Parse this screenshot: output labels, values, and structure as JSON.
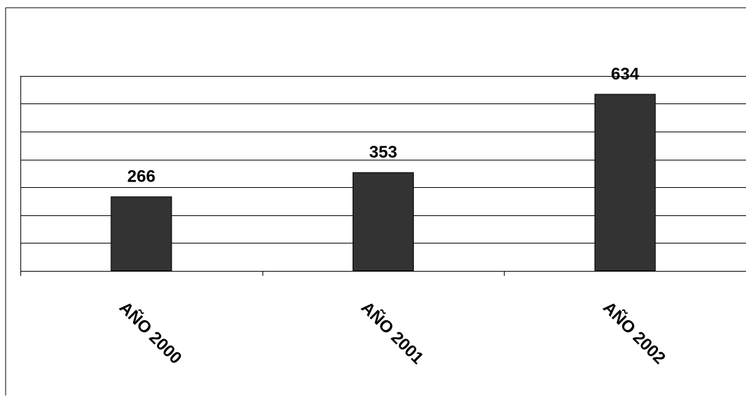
{
  "chart_data": {
    "type": "bar",
    "categories": [
      "AÑO 2000",
      "AÑO 2001",
      "AÑO 2002"
    ],
    "values": [
      266,
      353,
      634
    ],
    "data_labels": [
      "266",
      "353",
      "634"
    ],
    "title": "",
    "xlabel": "",
    "ylabel": "",
    "ylim": [
      0,
      700
    ],
    "y_tick_step": 100,
    "grid": true,
    "legend": "none",
    "bar_color": "#333333",
    "gridline_color": "#000000"
  }
}
